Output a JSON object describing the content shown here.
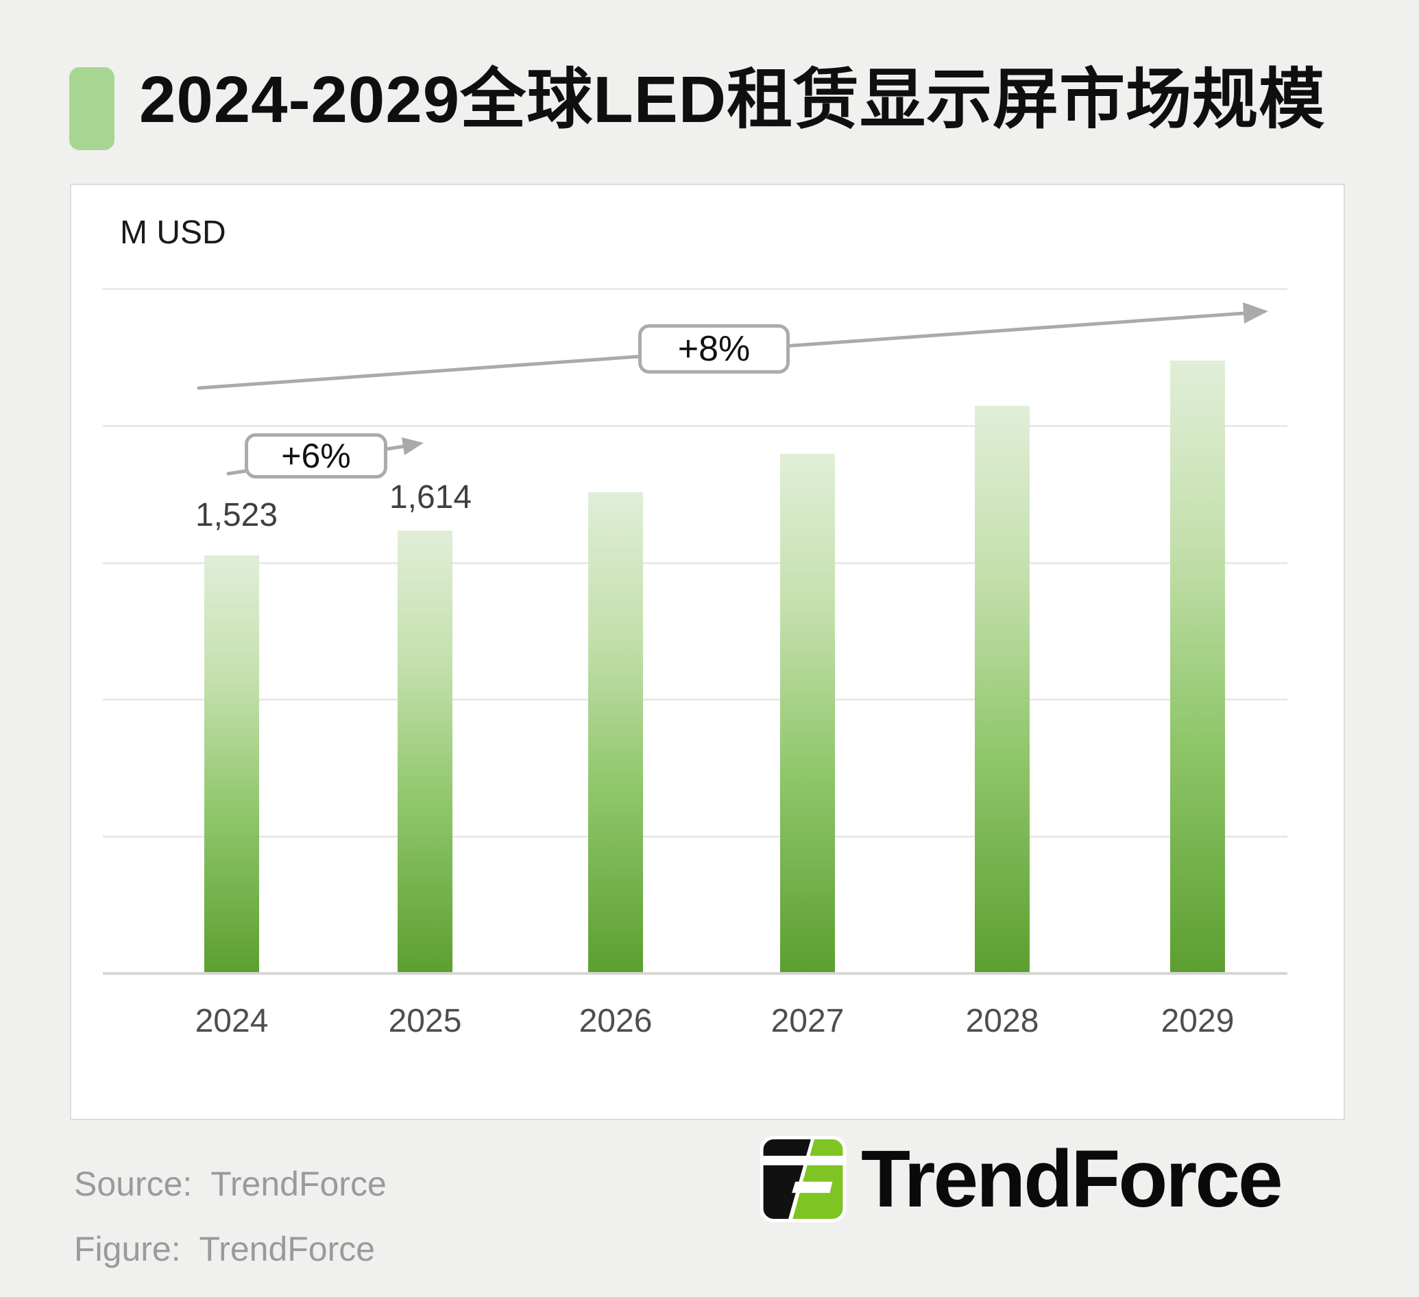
{
  "page": {
    "background": "#f0f0ee"
  },
  "header": {
    "title": "2024-2029全球LED租赁显示屏市场规模",
    "marker_color": "#a8d692"
  },
  "chart": {
    "unit_label": "M USD",
    "value_labels": {
      "v2024": "1,523",
      "v2025": "1,614"
    },
    "annotations": {
      "yoy_label": "+6%",
      "cagr_label": "+8%"
    },
    "arrow_color": "#aaaaaa"
  },
  "chart_data": {
    "type": "bar",
    "title": "2024-2029全球LED租赁显示屏市场规模",
    "unit": "M USD",
    "categories": [
      "2024",
      "2025",
      "2026",
      "2027",
      "2028",
      "2029"
    ],
    "values": [
      1523,
      1614,
      1755,
      1895,
      2070,
      2235
    ],
    "labeled_values": {
      "2024": "1,523",
      "2025": "1,614"
    },
    "annotations": [
      {
        "label": "+6%",
        "type": "yoy-growth",
        "between": [
          "2024",
          "2025"
        ]
      },
      {
        "label": "+8%",
        "type": "trend-growth",
        "span": [
          "2024",
          "2029"
        ]
      }
    ],
    "xlabel": "",
    "ylabel": "M USD",
    "ylim": [
      0,
      2500
    ],
    "gridline_step": 500,
    "grid": true,
    "legend": false,
    "bar_gradient": [
      "#e0eed7",
      "#c4e0ad",
      "#8fc66a",
      "#5c9f30"
    ]
  },
  "footer": {
    "source_line": "Source:  TrendForce",
    "figure_line": "Figure:  TrendForce",
    "logo_text": "TrendForce",
    "logo_green": "#7ec423"
  }
}
